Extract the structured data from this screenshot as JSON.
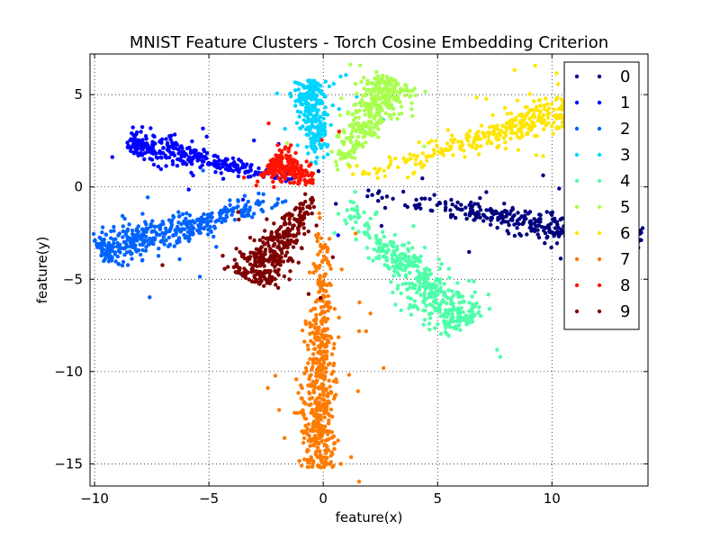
{
  "chart_data": {
    "type": "scatter",
    "title": "MNIST Feature Clusters - Torch Cosine Embedding Criterion",
    "xlabel": "feature(x)",
    "ylabel": "feature(y)",
    "xlim": [
      -10.2,
      14.2
    ],
    "ylim": [
      -16.2,
      7.2
    ],
    "xticks": [
      -10,
      -5,
      0,
      5,
      10
    ],
    "xtick_labels": [
      "−10",
      "−5",
      "0",
      "5",
      "10"
    ],
    "yticks": [
      5,
      0,
      -5,
      -10,
      -15
    ],
    "ytick_labels": [
      "5",
      "0",
      "−5",
      "−10",
      "−15"
    ],
    "grid": true,
    "legend_position": "top-right",
    "legend_entries": [
      "0",
      "1",
      "2",
      "3",
      "4",
      "5",
      "6",
      "7",
      "8",
      "9"
    ],
    "series": [
      {
        "name": "0",
        "color": "#00007f",
        "angle_deg": -12,
        "r_min": 1,
        "r_max": 14.2,
        "width": 0.45,
        "count": 420
      },
      {
        "name": "1",
        "color": "#0000ff",
        "angle_deg": 164,
        "r_min": 1,
        "r_max": 8.9,
        "width": 0.38,
        "count": 330
      },
      {
        "name": "2",
        "color": "#0063ff",
        "angle_deg": -160,
        "r_min": 1,
        "r_max": 10.4,
        "width": 0.55,
        "count": 420
      },
      {
        "name": "3",
        "color": "#00d4ff",
        "angle_deg": 96,
        "r_min": 1,
        "r_max": 5.8,
        "width": 0.42,
        "count": 260
      },
      {
        "name": "4",
        "color": "#4effa9",
        "angle_deg": -50,
        "r_min": 1,
        "r_max": 9.8,
        "width": 0.7,
        "count": 440
      },
      {
        "name": "5",
        "color": "#a9ff4e",
        "angle_deg": 62,
        "r_min": 1,
        "r_max": 6.6,
        "width": 0.65,
        "count": 360
      },
      {
        "name": "6",
        "color": "#ffe500",
        "angle_deg": 21,
        "r_min": 1,
        "r_max": 13.0,
        "width": 0.6,
        "count": 440
      },
      {
        "name": "7",
        "color": "#ff7b00",
        "angle_deg": -91,
        "r_min": 1,
        "r_max": 15.2,
        "width": 0.42,
        "count": 520
      },
      {
        "name": "8",
        "color": "#ff1300",
        "angle_deg": 150,
        "r_min": 0.3,
        "r_max": 2.7,
        "width": 0.55,
        "count": 220
      },
      {
        "name": "9",
        "color": "#7f0000",
        "angle_deg": -123,
        "r_min": 0.3,
        "r_max": 6.0,
        "width": 0.6,
        "count": 360
      }
    ]
  }
}
